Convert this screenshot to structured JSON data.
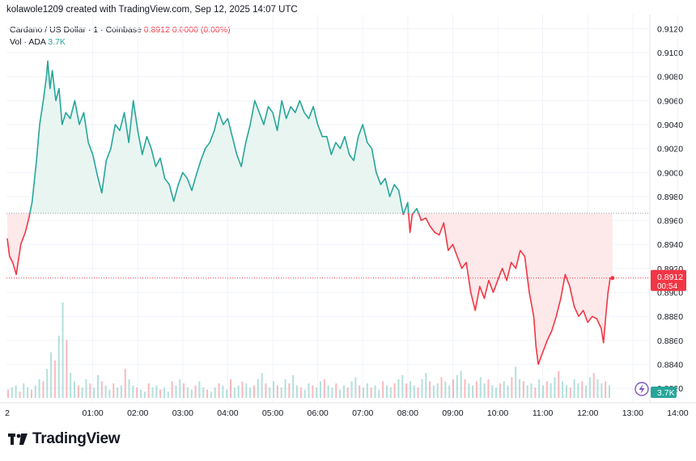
{
  "header": {
    "credit": "kolawole1209 created with TradingView.com, Sep 12, 2025 14:07 UTC"
  },
  "legend": {
    "symbol": "Cardano / US Dollar · 1 · Coinbase",
    "last": "0.8912",
    "change": "0.0000 (0.00%)",
    "volume_label": "Vol · ADA",
    "volume_value": "3.7K"
  },
  "price_label": {
    "price": "0.8912",
    "countdown": "00:54"
  },
  "volume_label": {
    "value": "3.7K"
  },
  "brand": {
    "name": "TradingView"
  },
  "colors": {
    "up": "#26a69a",
    "down": "#f23645",
    "up_fill": "#e9f5f1",
    "down_fill": "#fde9ea",
    "grid": "#f0f3fa"
  },
  "chart_data": {
    "type": "line",
    "title": "Cardano / US Dollar · 1 · Coinbase",
    "baseline": 0.8966,
    "ylim": [
      0.8812,
      0.9125
    ],
    "y_ticks": [
      "0.9120",
      "0.9100",
      "0.9080",
      "0.9060",
      "0.9040",
      "0.9020",
      "0.9000",
      "0.8980",
      "0.8960",
      "0.8940",
      "0.8920",
      "0.8900",
      "0.8880",
      "0.8860",
      "0.8840",
      "0.8820"
    ],
    "x_ticks": [
      {
        "label": "2",
        "t": -0.9
      },
      {
        "label": "01:00",
        "t": 1
      },
      {
        "label": "02:00",
        "t": 2
      },
      {
        "label": "03:00",
        "t": 3
      },
      {
        "label": "04:00",
        "t": 4
      },
      {
        "label": "05:00",
        "t": 5
      },
      {
        "label": "06:00",
        "t": 6
      },
      {
        "label": "07:00",
        "t": 7
      },
      {
        "label": "08:00",
        "t": 8
      },
      {
        "label": "09:00",
        "t": 9
      },
      {
        "label": "10:00",
        "t": 10
      },
      {
        "label": "11:00",
        "t": 11
      },
      {
        "label": "12:00",
        "t": 12
      },
      {
        "label": "13:00",
        "t": 13
      },
      {
        "label": "14:00",
        "t": 14
      }
    ],
    "price_series": {
      "name": "ADA/USD",
      "points": [
        [
          -0.9,
          0.8945
        ],
        [
          -0.85,
          0.893
        ],
        [
          -0.78,
          0.8925
        ],
        [
          -0.7,
          0.8915
        ],
        [
          -0.6,
          0.894
        ],
        [
          -0.5,
          0.895
        ],
        [
          -0.42,
          0.8962
        ],
        [
          -0.35,
          0.8975
        ],
        [
          -0.25,
          0.901
        ],
        [
          -0.18,
          0.904
        ],
        [
          -0.1,
          0.906
        ],
        [
          -0.03,
          0.908
        ],
        [
          0.0,
          0.9093
        ],
        [
          0.05,
          0.907
        ],
        [
          0.1,
          0.9085
        ],
        [
          0.18,
          0.906
        ],
        [
          0.25,
          0.907
        ],
        [
          0.32,
          0.904
        ],
        [
          0.4,
          0.905
        ],
        [
          0.5,
          0.9045
        ],
        [
          0.6,
          0.906
        ],
        [
          0.7,
          0.904
        ],
        [
          0.8,
          0.905
        ],
        [
          0.9,
          0.9025
        ],
        [
          1.0,
          0.9015
        ],
        [
          1.1,
          0.8998
        ],
        [
          1.2,
          0.8983
        ],
        [
          1.3,
          0.901
        ],
        [
          1.4,
          0.902
        ],
        [
          1.5,
          0.904
        ],
        [
          1.6,
          0.9035
        ],
        [
          1.7,
          0.905
        ],
        [
          1.8,
          0.9025
        ],
        [
          1.9,
          0.906
        ],
        [
          2.0,
          0.9035
        ],
        [
          2.1,
          0.9015
        ],
        [
          2.2,
          0.903
        ],
        [
          2.3,
          0.902
        ],
        [
          2.4,
          0.9005
        ],
        [
          2.5,
          0.9012
        ],
        [
          2.6,
          0.8995
        ],
        [
          2.7,
          0.899
        ],
        [
          2.8,
          0.8976
        ],
        [
          2.9,
          0.899
        ],
        [
          3.0,
          0.9
        ],
        [
          3.1,
          0.8995
        ],
        [
          3.2,
          0.8985
        ],
        [
          3.3,
          0.8998
        ],
        [
          3.4,
          0.901
        ],
        [
          3.5,
          0.902
        ],
        [
          3.6,
          0.9025
        ],
        [
          3.7,
          0.9035
        ],
        [
          3.8,
          0.905
        ],
        [
          3.9,
          0.904
        ],
        [
          4.0,
          0.9045
        ],
        [
          4.1,
          0.903
        ],
        [
          4.2,
          0.9015
        ],
        [
          4.3,
          0.9005
        ],
        [
          4.4,
          0.9025
        ],
        [
          4.5,
          0.904
        ],
        [
          4.6,
          0.906
        ],
        [
          4.7,
          0.905
        ],
        [
          4.8,
          0.904
        ],
        [
          4.9,
          0.9055
        ],
        [
          5.0,
          0.905
        ],
        [
          5.1,
          0.9035
        ],
        [
          5.2,
          0.906
        ],
        [
          5.3,
          0.9045
        ],
        [
          5.4,
          0.9055
        ],
        [
          5.5,
          0.905
        ],
        [
          5.6,
          0.906
        ],
        [
          5.7,
          0.905
        ],
        [
          5.8,
          0.9045
        ],
        [
          5.9,
          0.9055
        ],
        [
          6.0,
          0.904
        ],
        [
          6.1,
          0.903
        ],
        [
          6.2,
          0.903
        ],
        [
          6.3,
          0.9015
        ],
        [
          6.4,
          0.9025
        ],
        [
          6.5,
          0.902
        ],
        [
          6.6,
          0.903
        ],
        [
          6.7,
          0.9015
        ],
        [
          6.8,
          0.901
        ],
        [
          6.9,
          0.903
        ],
        [
          7.0,
          0.904
        ],
        [
          7.1,
          0.9025
        ],
        [
          7.2,
          0.902
        ],
        [
          7.3,
          0.9
        ],
        [
          7.4,
          0.899
        ],
        [
          7.5,
          0.8995
        ],
        [
          7.6,
          0.898
        ],
        [
          7.7,
          0.899
        ],
        [
          7.8,
          0.8985
        ],
        [
          7.9,
          0.8965
        ],
        [
          8.0,
          0.8975
        ],
        [
          8.05,
          0.895
        ],
        [
          8.1,
          0.8965
        ],
        [
          8.2,
          0.897
        ],
        [
          8.3,
          0.896
        ],
        [
          8.4,
          0.8962
        ],
        [
          8.5,
          0.8955
        ],
        [
          8.6,
          0.895
        ],
        [
          8.7,
          0.8948
        ],
        [
          8.8,
          0.8958
        ],
        [
          8.9,
          0.8935
        ],
        [
          9.0,
          0.894
        ],
        [
          9.1,
          0.893
        ],
        [
          9.2,
          0.892
        ],
        [
          9.3,
          0.8925
        ],
        [
          9.4,
          0.89
        ],
        [
          9.5,
          0.8885
        ],
        [
          9.6,
          0.8905
        ],
        [
          9.7,
          0.8895
        ],
        [
          9.8,
          0.891
        ],
        [
          9.9,
          0.89
        ],
        [
          10.0,
          0.891
        ],
        [
          10.1,
          0.892
        ],
        [
          10.2,
          0.891
        ],
        [
          10.3,
          0.8925
        ],
        [
          10.4,
          0.892
        ],
        [
          10.5,
          0.8935
        ],
        [
          10.6,
          0.893
        ],
        [
          10.7,
          0.89
        ],
        [
          10.8,
          0.888
        ],
        [
          10.85,
          0.8855
        ],
        [
          10.9,
          0.884
        ],
        [
          11.0,
          0.885
        ],
        [
          11.1,
          0.886
        ],
        [
          11.2,
          0.8868
        ],
        [
          11.3,
          0.888
        ],
        [
          11.4,
          0.8895
        ],
        [
          11.5,
          0.8915
        ],
        [
          11.6,
          0.8905
        ],
        [
          11.7,
          0.8888
        ],
        [
          11.8,
          0.888
        ],
        [
          11.9,
          0.8885
        ],
        [
          12.0,
          0.8875
        ],
        [
          12.1,
          0.888
        ],
        [
          12.2,
          0.8878
        ],
        [
          12.3,
          0.887
        ],
        [
          12.35,
          0.8858
        ],
        [
          12.4,
          0.888
        ],
        [
          12.45,
          0.89
        ],
        [
          12.5,
          0.8912
        ],
        [
          12.55,
          0.8912
        ]
      ]
    },
    "volume_series": {
      "name": "Vol · ADA",
      "values": [
        4,
        5,
        6,
        3,
        7,
        5,
        4,
        6,
        9,
        8,
        14,
        22,
        18,
        30,
        46,
        28,
        12,
        8,
        6,
        5,
        9,
        7,
        5,
        11,
        8,
        6,
        4,
        7,
        5,
        6,
        14,
        9,
        6,
        5,
        4,
        3,
        7,
        5,
        6,
        4,
        5,
        3,
        8,
        6,
        9,
        7,
        5,
        4,
        6,
        8,
        5,
        4,
        3,
        5,
        7,
        6,
        4,
        9,
        5,
        6,
        8,
        7,
        5,
        6,
        9,
        12,
        7,
        5,
        8,
        6,
        5,
        9,
        7,
        11,
        6,
        5,
        4,
        7,
        6,
        5,
        8,
        9,
        6,
        5,
        7,
        4,
        6,
        5,
        8,
        10,
        6,
        5,
        7,
        5,
        6,
        4,
        8,
        6,
        5,
        7,
        9,
        11,
        7,
        8,
        6,
        5,
        9,
        12,
        8,
        6,
        7,
        10,
        8,
        6,
        9,
        11,
        13,
        9,
        7,
        6,
        8,
        10,
        7,
        9,
        6,
        5,
        7,
        8,
        6,
        10,
        15,
        9,
        8,
        6,
        7,
        5,
        9,
        6,
        8,
        7,
        10,
        13,
        8,
        6,
        5,
        9,
        7,
        8,
        6,
        10,
        12,
        9,
        7,
        8,
        6
      ]
    }
  }
}
